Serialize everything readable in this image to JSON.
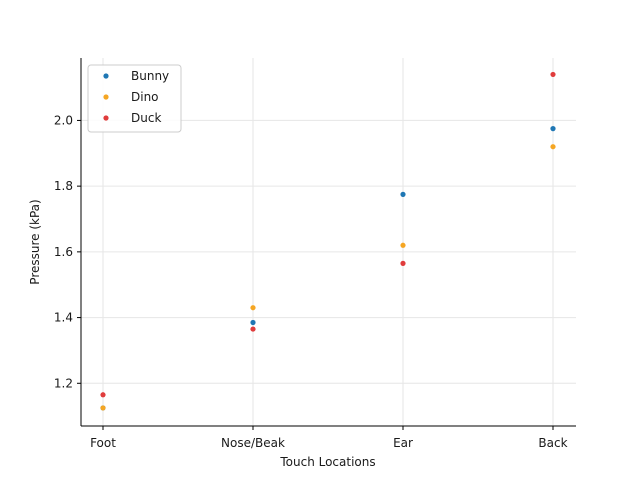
{
  "chart_data": {
    "type": "scatter",
    "title": "",
    "xlabel": "Touch Locations",
    "ylabel": "Pressure (kPa)",
    "categories": [
      "Foot",
      "Nose/Beak",
      "Ear",
      "Back"
    ],
    "ylim": [
      1.07,
      2.19
    ],
    "yticks": [
      "1.2",
      "1.4",
      "1.6",
      "1.8",
      "2.0"
    ],
    "grid": true,
    "legend_position": "top-left",
    "series": [
      {
        "name": "Bunny",
        "color": "#1f77b4",
        "values": [
          1.125,
          1.385,
          1.775,
          1.975
        ]
      },
      {
        "name": "Dino",
        "color": "#f5a623",
        "values": [
          1.125,
          1.43,
          1.62,
          1.92
        ]
      },
      {
        "name": "Duck",
        "color": "#e03c3c",
        "values": [
          1.165,
          1.365,
          1.565,
          2.14
        ]
      }
    ]
  }
}
